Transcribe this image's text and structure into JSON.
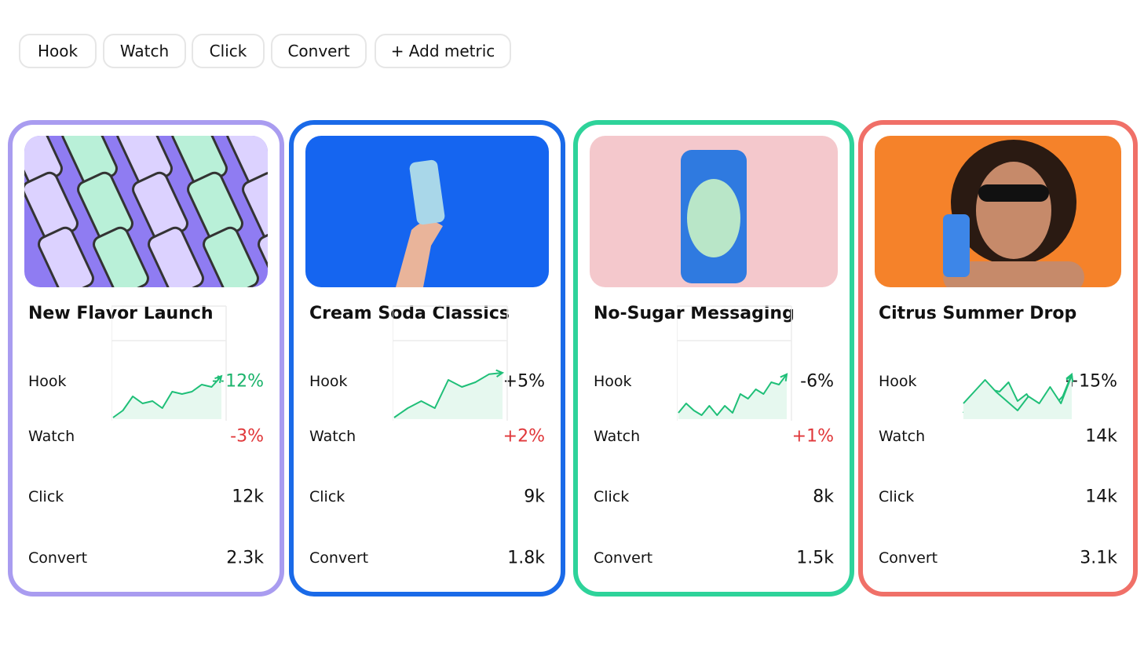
{
  "toolbar": {
    "buttons": [
      "Hook",
      "Watch",
      "Click",
      "Convert",
      "+ Add metric"
    ]
  },
  "trend_lim": [
    0,
    100
  ],
  "cards": [
    {
      "title": "New Flavor Launch",
      "border": "#a99cf0",
      "image_bg": "#8f7cf2",
      "grid": true,
      "metrics": [
        {
          "label": "Hook",
          "value": "+12%",
          "color": "#1bb36b"
        },
        {
          "label": "Watch",
          "value": "-3%",
          "color": "#e0373a"
        },
        {
          "label": "Click",
          "value": "12k",
          "color": "#111111",
          "trend": [
            0,
            15,
            45,
            30,
            35,
            20,
            55,
            50,
            55,
            70,
            65,
            88
          ]
        },
        {
          "label": "Convert",
          "value": "2.3k",
          "color": "#111111"
        }
      ]
    },
    {
      "title": "Cream Soda Classics",
      "border": "#1a6ae8",
      "image_bg": "#1565f0",
      "grid": true,
      "metrics": [
        {
          "label": "Hook",
          "value": "+5%",
          "color": "#111111"
        },
        {
          "label": "Watch",
          "value": "+2%",
          "color": "#e0373a"
        },
        {
          "label": "Click",
          "value": "9k",
          "color": "#111111",
          "trend": [
            0,
            20,
            35,
            20,
            80,
            65,
            75,
            92,
            95
          ]
        },
        {
          "label": "Convert",
          "value": "1.8k",
          "color": "#111111"
        }
      ]
    },
    {
      "title": "No-Sugar Messaging",
      "border": "#2ed39a",
      "image_bg": "#f4c8cc",
      "grid": true,
      "metrics": [
        {
          "label": "Hook",
          "value": "-6%",
          "color": "#111111"
        },
        {
          "label": "Watch",
          "value": "+1%",
          "color": "#e0373a"
        },
        {
          "label": "Click",
          "value": "8k",
          "color": "#111111",
          "trend": [
            10,
            30,
            15,
            5,
            25,
            5,
            25,
            10,
            50,
            40,
            60,
            50,
            75,
            70,
            92
          ]
        },
        {
          "label": "Convert",
          "value": "1.5k",
          "color": "#111111"
        }
      ]
    },
    {
      "title": "Citrus Summer Drop",
      "border": "#f07068",
      "image_bg": "#f5822a",
      "grid": false,
      "metrics": [
        {
          "label": "Hook",
          "value": "+15%",
          "color": "#111111"
        },
        {
          "label": "Watch",
          "value": "14k",
          "color": "#111111",
          "trend": [
            10,
            40,
            35,
            60,
            55,
            75,
            35,
            50,
            20,
            35,
            25,
            45,
            92
          ]
        },
        {
          "label": "Click",
          "value": "14k",
          "color": "#111111",
          "trend": [
            30,
            55,
            80,
            55,
            35,
            15,
            45,
            30,
            65,
            30,
            90
          ]
        },
        {
          "label": "Convert",
          "value": "3.1k",
          "color": "#111111"
        }
      ]
    }
  ]
}
